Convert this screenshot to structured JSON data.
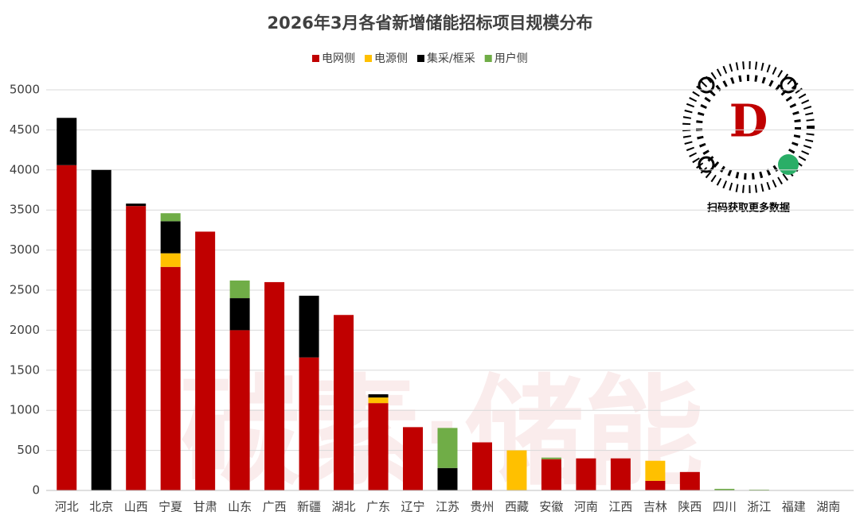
{
  "chart_data": {
    "type": "stacked_bar",
    "title": "2026年3月各省新增储能招标项目规模分布",
    "categories": [
      "河北",
      "北京",
      "山西",
      "宁夏",
      "甘肃",
      "山东",
      "广西",
      "新疆",
      "湖北",
      "广东",
      "辽宁",
      "江苏",
      "贵州",
      "西藏",
      "安徽",
      "河南",
      "江西",
      "吉林",
      "陕西",
      "四川",
      "浙江",
      "福建",
      "湖南"
    ],
    "series": [
      {
        "name": "电网侧",
        "color": "#c00000",
        "values": [
          4060,
          0,
          3550,
          2790,
          3230,
          2000,
          2600,
          1660,
          2190,
          1090,
          790,
          0,
          600,
          0,
          390,
          400,
          400,
          120,
          230,
          0,
          0,
          0,
          0
        ]
      },
      {
        "name": "电源侧",
        "color": "#ffc000",
        "values": [
          0,
          0,
          0,
          170,
          0,
          0,
          0,
          0,
          0,
          70,
          0,
          0,
          0,
          500,
          0,
          0,
          0,
          250,
          0,
          0,
          0,
          0,
          0
        ]
      },
      {
        "name": "集采/框采",
        "color": "#000000",
        "values": [
          590,
          4000,
          30,
          400,
          0,
          400,
          0,
          770,
          0,
          40,
          0,
          280,
          0,
          0,
          0,
          0,
          0,
          0,
          0,
          0,
          0,
          0,
          0
        ]
      },
      {
        "name": "用户侧",
        "color": "#70ad47",
        "values": [
          0,
          0,
          0,
          100,
          0,
          220,
          0,
          0,
          0,
          0,
          0,
          500,
          0,
          0,
          20,
          0,
          0,
          0,
          0,
          20,
          10,
          0,
          0
        ]
      }
    ],
    "ylim": [
      0,
      5000
    ],
    "yticks": [
      0,
      500,
      1000,
      1500,
      2000,
      2500,
      3000,
      3500,
      4000,
      4500,
      5000
    ],
    "grid": true,
    "legend": "top",
    "watermark": "碳素·储能",
    "qr_caption": "扫码获取更多数据"
  }
}
